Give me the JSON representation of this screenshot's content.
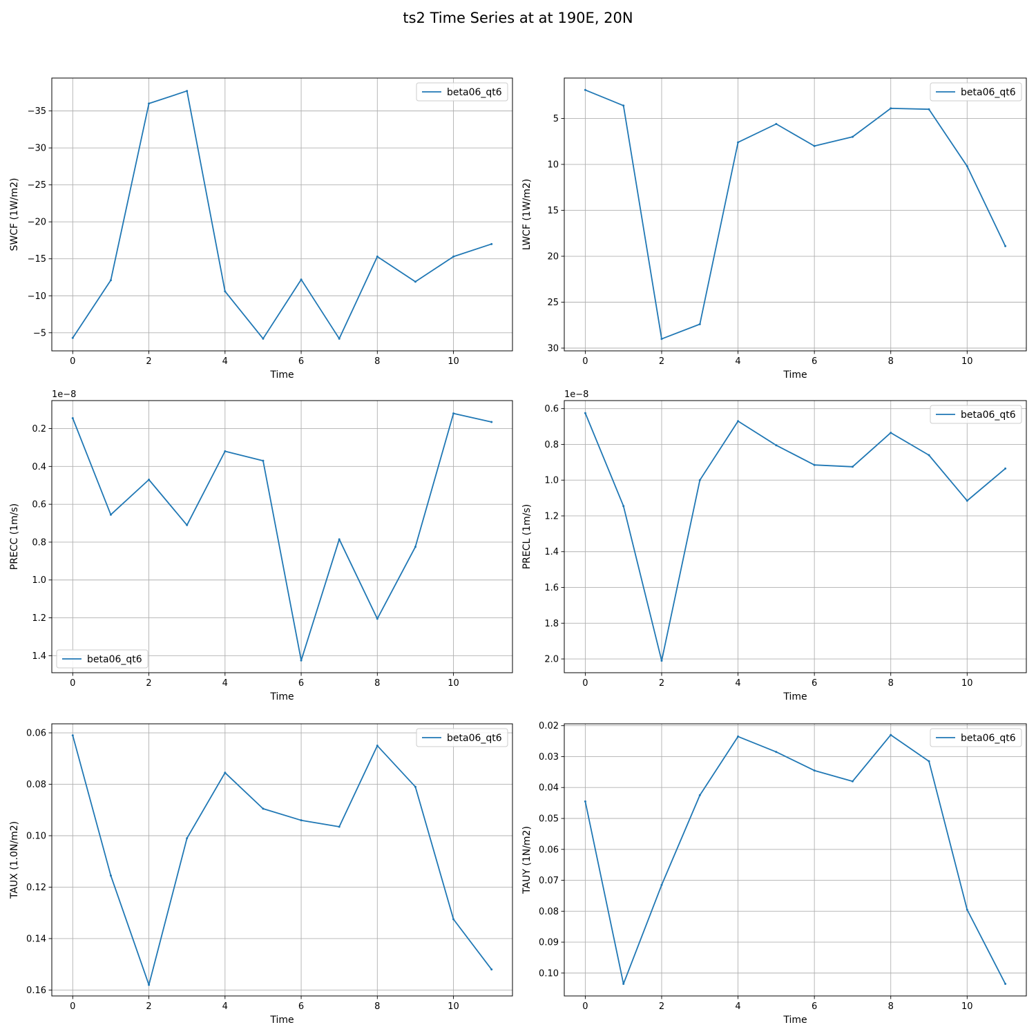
{
  "figure": {
    "title": "ts2 Time Series at at 190E, 20N"
  },
  "colors": {
    "line": "#1f77b4",
    "grid": "#b0b0b0",
    "axis": "#000000",
    "legend_border": "#cccccc"
  },
  "chart_data": [
    {
      "type": "line",
      "xlabel": "Time",
      "ylabel": "SWCF (1W/m2)",
      "y_inverted": true,
      "legend_position": "upper-right",
      "xlim": [
        -0.55,
        11.55
      ],
      "xticks": [
        0,
        2,
        4,
        6,
        8,
        10
      ],
      "ylim": [
        -2.55,
        -39.45
      ],
      "yticks": [
        -35,
        -30,
        -25,
        -20,
        -15,
        -10,
        -5
      ],
      "ytick_labels": [
        "−35",
        "−30",
        "−25",
        "−20",
        "−15",
        "−10",
        "−5"
      ],
      "series": [
        {
          "name": "beta06_qt6",
          "x": [
            0,
            1,
            2,
            3,
            4,
            5,
            6,
            7,
            8,
            9,
            10,
            11
          ],
          "y": [
            -4.3,
            -12.1,
            -36.0,
            -37.7,
            -10.6,
            -4.2,
            -12.2,
            -4.2,
            -15.3,
            -11.9,
            -15.3,
            -17.0
          ]
        }
      ]
    },
    {
      "type": "line",
      "xlabel": "Time",
      "ylabel": "LWCF (1W/m2)",
      "y_inverted": true,
      "legend_position": "upper-right",
      "xlim": [
        -0.55,
        11.55
      ],
      "xticks": [
        0,
        2,
        4,
        6,
        8,
        10
      ],
      "ylim": [
        30.3,
        0.6
      ],
      "yticks": [
        5,
        10,
        15,
        20,
        25,
        30
      ],
      "ytick_labels": [
        "5",
        "10",
        "15",
        "20",
        "25",
        "30"
      ],
      "series": [
        {
          "name": "beta06_qt6",
          "x": [
            0,
            1,
            2,
            3,
            4,
            5,
            6,
            7,
            8,
            9,
            10,
            11
          ],
          "y": [
            1.9,
            3.6,
            29.0,
            27.4,
            7.6,
            5.6,
            8.0,
            7.0,
            3.9,
            4.0,
            10.2,
            18.9
          ]
        }
      ]
    },
    {
      "type": "line",
      "xlabel": "Time",
      "ylabel": "PRECC (1m/s)",
      "y_inverted": true,
      "legend_position": "lower-left",
      "scale_label": "1e−8",
      "xlim": [
        -0.55,
        11.55
      ],
      "xticks": [
        0,
        2,
        4,
        6,
        8,
        10
      ],
      "ylim": [
        1.49,
        0.052
      ],
      "yticks": [
        0.2,
        0.4,
        0.6,
        0.8,
        1.0,
        1.2,
        1.4
      ],
      "ytick_labels": [
        "0.2",
        "0.4",
        "0.6",
        "0.8",
        "1.0",
        "1.2",
        "1.4"
      ],
      "series": [
        {
          "name": "beta06_qt6",
          "x": [
            0,
            1,
            2,
            3,
            4,
            5,
            6,
            7,
            8,
            9,
            10,
            11
          ],
          "y": [
            0.145,
            0.655,
            0.47,
            0.71,
            0.32,
            0.37,
            1.425,
            0.785,
            1.205,
            0.825,
            0.12,
            0.165
          ]
        }
      ]
    },
    {
      "type": "line",
      "xlabel": "Time",
      "ylabel": "PRECL (1m/s)",
      "y_inverted": true,
      "legend_position": "upper-right",
      "scale_label": "1e−8",
      "xlim": [
        -0.55,
        11.55
      ],
      "xticks": [
        0,
        2,
        4,
        6,
        8,
        10
      ],
      "ylim": [
        2.077,
        0.555
      ],
      "yticks": [
        0.6,
        0.8,
        1.0,
        1.2,
        1.4,
        1.6,
        1.8,
        2.0
      ],
      "ytick_labels": [
        "0.6",
        "0.8",
        "1.0",
        "1.2",
        "1.4",
        "1.6",
        "1.8",
        "2.0"
      ],
      "series": [
        {
          "name": "beta06_qt6",
          "x": [
            0,
            1,
            2,
            3,
            4,
            5,
            6,
            7,
            8,
            9,
            10,
            11
          ],
          "y": [
            0.625,
            1.145,
            2.01,
            1.0,
            0.67,
            0.805,
            0.915,
            0.925,
            0.735,
            0.86,
            1.115,
            0.935
          ]
        }
      ]
    },
    {
      "type": "line",
      "xlabel": "Time",
      "ylabel": "TAUX (1.0N/m2)",
      "y_inverted": true,
      "legend_position": "upper-right",
      "xlim": [
        -0.55,
        11.55
      ],
      "xticks": [
        0,
        2,
        4,
        6,
        8,
        10
      ],
      "ylim": [
        0.1623,
        0.0565
      ],
      "yticks": [
        0.06,
        0.08,
        0.1,
        0.12,
        0.14,
        0.16
      ],
      "ytick_labels": [
        "0.06",
        "0.08",
        "0.10",
        "0.12",
        "0.14",
        "0.16"
      ],
      "series": [
        {
          "name": "beta06_qt6",
          "x": [
            0,
            1,
            2,
            3,
            4,
            5,
            6,
            7,
            8,
            9,
            10,
            11
          ],
          "y": [
            0.061,
            0.1155,
            0.158,
            0.101,
            0.0755,
            0.0895,
            0.094,
            0.0965,
            0.065,
            0.081,
            0.1325,
            0.152
          ]
        }
      ]
    },
    {
      "type": "line",
      "xlabel": "Time",
      "ylabel": "TAUY (1N/m2)",
      "y_inverted": true,
      "legend_position": "upper-right",
      "xlim": [
        -0.55,
        11.55
      ],
      "xticks": [
        0,
        2,
        4,
        6,
        8,
        10
      ],
      "ylim": [
        0.1074,
        0.0194
      ],
      "yticks": [
        0.02,
        0.03,
        0.04,
        0.05,
        0.06,
        0.07,
        0.08,
        0.09,
        0.1
      ],
      "ytick_labels": [
        "0.02",
        "0.03",
        "0.04",
        "0.05",
        "0.06",
        "0.07",
        "0.08",
        "0.09",
        "0.10"
      ],
      "series": [
        {
          "name": "beta06_qt6",
          "x": [
            0,
            1,
            2,
            3,
            4,
            5,
            6,
            7,
            8,
            9,
            10,
            11
          ],
          "y": [
            0.0445,
            0.1035,
            0.0715,
            0.0425,
            0.0235,
            0.0285,
            0.0345,
            0.038,
            0.023,
            0.0315,
            0.0795,
            0.1035
          ]
        }
      ]
    }
  ]
}
